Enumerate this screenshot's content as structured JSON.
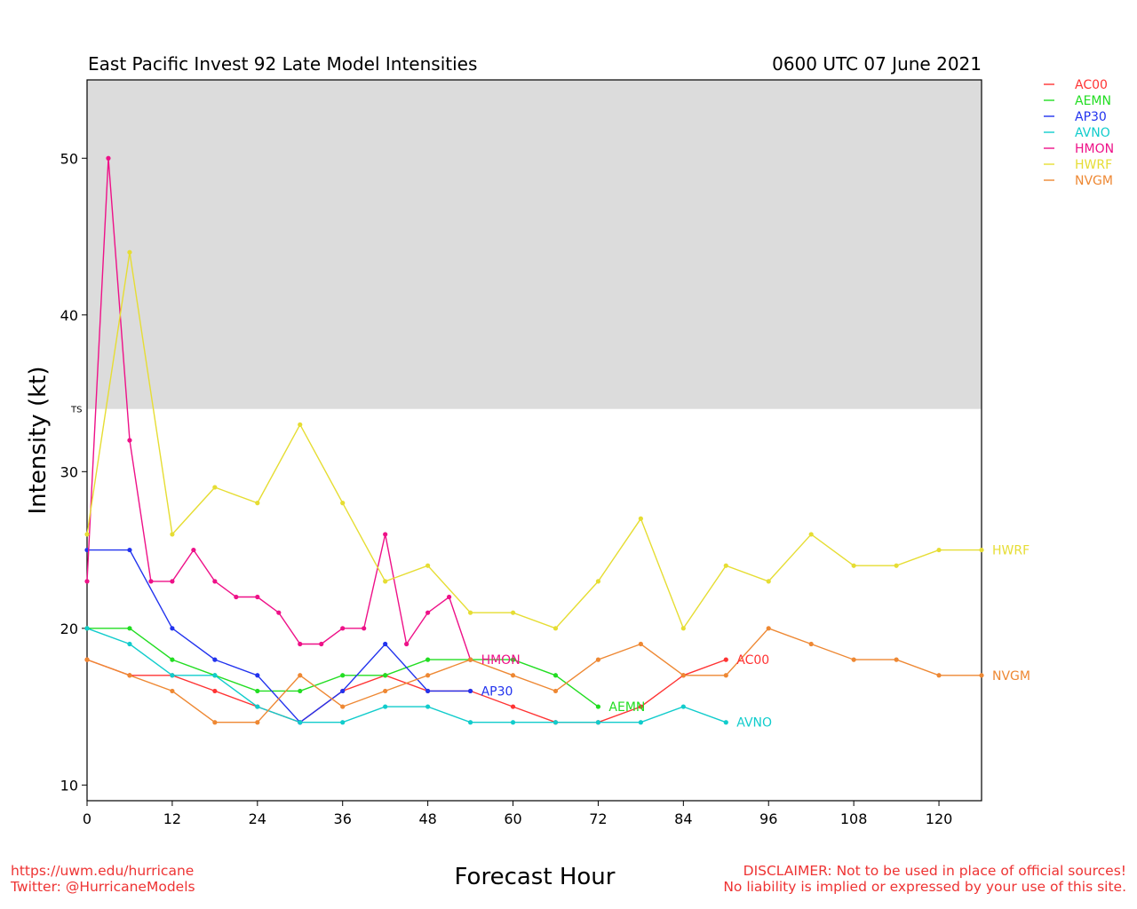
{
  "chart_data": {
    "type": "line",
    "title": "East Pacific Invest 92 Late Model Intensities",
    "title_right": "0600 UTC 07 June 2021",
    "xlabel": "Forecast Hour",
    "ylabel": "Intensity (kt)",
    "xlim": [
      0,
      126
    ],
    "ylim": [
      9,
      55
    ],
    "xticks": [
      0,
      12,
      24,
      36,
      48,
      60,
      72,
      84,
      96,
      108,
      120
    ],
    "yticks": [
      10,
      20,
      30,
      40,
      50
    ],
    "thresholds": [
      {
        "label": "TS",
        "value": 34,
        "shade_color": "#dcdcdc"
      }
    ],
    "legend_position": "right-outside-top",
    "series": [
      {
        "name": "AC00",
        "color": "#ff3333",
        "x": [
          0,
          6,
          12,
          18,
          24,
          30,
          36,
          42,
          48,
          54,
          60,
          66,
          72,
          78,
          84,
          90
        ],
        "y": [
          18,
          17,
          17,
          16,
          15,
          14,
          16,
          17,
          16,
          16,
          15,
          14,
          14,
          15,
          17,
          18
        ],
        "end_label": "AC00"
      },
      {
        "name": "AEMN",
        "color": "#22dd22",
        "x": [
          0,
          6,
          12,
          18,
          24,
          30,
          36,
          42,
          48,
          54,
          60,
          66,
          72
        ],
        "y": [
          20,
          20,
          18,
          17,
          16,
          16,
          17,
          17,
          18,
          18,
          18,
          17,
          15
        ],
        "end_label": "AEMN"
      },
      {
        "name": "AP30",
        "color": "#2233ee",
        "x": [
          0,
          6,
          12,
          18,
          24,
          30,
          36,
          42,
          48,
          54
        ],
        "y": [
          25,
          25,
          20,
          18,
          17,
          14,
          16,
          19,
          16,
          16
        ],
        "end_label": "AP30"
      },
      {
        "name": "AVNO",
        "color": "#11cccc",
        "x": [
          0,
          6,
          12,
          18,
          24,
          30,
          36,
          42,
          48,
          54,
          60,
          66,
          72,
          78,
          84,
          90
        ],
        "y": [
          20,
          19,
          17,
          17,
          15,
          14,
          14,
          15,
          15,
          14,
          14,
          14,
          14,
          14,
          15,
          14
        ],
        "end_label": "AVNO"
      },
      {
        "name": "HMON",
        "color": "#ee1188",
        "x": [
          0,
          3,
          6,
          9,
          12,
          15,
          18,
          21,
          24,
          27,
          30,
          33,
          36,
          39,
          42,
          45,
          48,
          51,
          54
        ],
        "y": [
          23,
          50,
          32,
          23,
          23,
          25,
          23,
          22,
          22,
          21,
          19,
          19,
          20,
          20,
          26,
          19,
          21,
          22,
          18
        ],
        "end_label": "HMON"
      },
      {
        "name": "HWRF",
        "color": "#e6dd33",
        "x": [
          0,
          6,
          12,
          18,
          24,
          30,
          36,
          42,
          48,
          54,
          60,
          66,
          72,
          78,
          84,
          90,
          96,
          102,
          108,
          114,
          120,
          126
        ],
        "y": [
          26,
          44,
          26,
          29,
          28,
          33,
          28,
          23,
          24,
          21,
          21,
          20,
          23,
          27,
          20,
          24,
          23,
          26,
          24,
          24,
          25,
          25
        ],
        "end_label": "HWRF"
      },
      {
        "name": "NVGM",
        "color": "#ee8833",
        "x": [
          0,
          6,
          12,
          18,
          24,
          30,
          36,
          42,
          48,
          54,
          60,
          66,
          72,
          78,
          84,
          90,
          96,
          102,
          108,
          114,
          120,
          126
        ],
        "y": [
          18,
          17,
          16,
          14,
          14,
          17,
          15,
          16,
          17,
          18,
          17,
          16,
          18,
          19,
          17,
          17,
          20,
          19,
          18,
          18,
          17,
          17
        ],
        "end_label": "NVGM"
      }
    ]
  },
  "footer": {
    "url": "https://uwm.edu/hurricane",
    "twitter": "Twitter: @HurricaneModels",
    "disclaimer1": "DISCLAIMER: Not to be used in place of official sources!",
    "disclaimer2": "No liability is implied or expressed by your use of this site."
  }
}
